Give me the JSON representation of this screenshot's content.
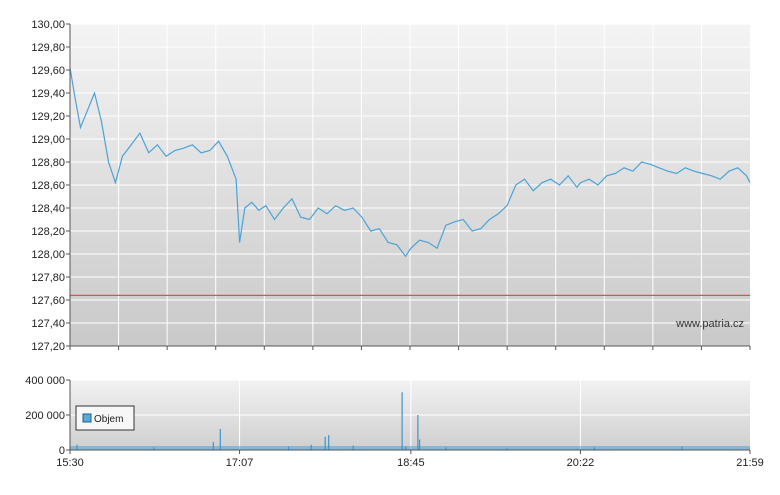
{
  "chart_data": [
    {
      "type": "line",
      "title": "",
      "xlabel": "",
      "ylabel": "",
      "ylim": [
        127.2,
        130.0
      ],
      "y_ticks": [
        "127,20",
        "127,40",
        "127,60",
        "127,80",
        "128,00",
        "128,20",
        "128,40",
        "128,60",
        "128,80",
        "129,00",
        "129,20",
        "129,40",
        "129,60",
        "129,80",
        "130,00"
      ],
      "y_tick_values": [
        127.2,
        127.4,
        127.6,
        127.8,
        128.0,
        128.2,
        128.4,
        128.6,
        128.8,
        129.0,
        129.2,
        129.4,
        129.6,
        129.8,
        130.0
      ],
      "x_range": [
        "15:30",
        "21:59"
      ],
      "reference_line": 127.64,
      "watermark": "www.patria.cz",
      "grid": true,
      "series": [
        {
          "x": [
            "15:30",
            "15:33",
            "15:36",
            "15:40",
            "15:44",
            "15:48",
            "15:52",
            "15:56",
            "16:00",
            "16:05",
            "16:10",
            "16:15",
            "16:20",
            "16:25",
            "16:30",
            "16:35",
            "16:40",
            "16:45",
            "16:50",
            "16:55",
            "17:00",
            "17:05",
            "17:07",
            "17:10",
            "17:14",
            "17:18",
            "17:22",
            "17:27",
            "17:32",
            "17:37",
            "17:42",
            "17:47",
            "17:52",
            "17:57",
            "18:02",
            "18:07",
            "18:12",
            "18:17",
            "18:22",
            "18:27",
            "18:32",
            "18:37",
            "18:42",
            "18:45",
            "18:50",
            "18:55",
            "19:00",
            "19:05",
            "19:10",
            "19:15",
            "19:20",
            "19:25",
            "19:30",
            "19:35",
            "19:40",
            "19:45",
            "19:50",
            "19:55",
            "20:00",
            "20:05",
            "20:10",
            "20:15",
            "20:20",
            "20:22",
            "20:27",
            "20:32",
            "20:37",
            "20:42",
            "20:47",
            "20:52",
            "20:57",
            "21:02",
            "21:07",
            "21:12",
            "21:17",
            "21:22",
            "21:27",
            "21:32",
            "21:37",
            "21:42",
            "21:47",
            "21:52",
            "21:57",
            "21:59"
          ],
          "values": [
            129.62,
            129.35,
            129.1,
            129.25,
            129.4,
            129.15,
            128.8,
            128.62,
            128.85,
            128.95,
            129.05,
            128.88,
            128.95,
            128.85,
            128.9,
            128.92,
            128.95,
            128.88,
            128.9,
            128.98,
            128.85,
            128.65,
            128.1,
            128.4,
            128.45,
            128.38,
            128.42,
            128.3,
            128.4,
            128.48,
            128.32,
            128.3,
            128.4,
            128.35,
            128.42,
            128.38,
            128.4,
            128.32,
            128.2,
            128.22,
            128.1,
            128.08,
            127.98,
            128.05,
            128.12,
            128.1,
            128.05,
            128.25,
            128.28,
            128.3,
            128.2,
            128.22,
            128.3,
            128.35,
            128.42,
            128.6,
            128.65,
            128.55,
            128.62,
            128.65,
            128.6,
            128.68,
            128.58,
            128.62,
            128.65,
            128.6,
            128.68,
            128.7,
            128.75,
            128.72,
            128.8,
            128.78,
            128.75,
            128.72,
            128.7,
            128.75,
            128.72,
            128.7,
            128.68,
            128.65,
            128.72,
            128.75,
            128.68,
            128.62
          ]
        }
      ]
    },
    {
      "type": "bar",
      "title": "",
      "xlabel": "",
      "ylabel": "",
      "ylim": [
        0,
        400000
      ],
      "y_ticks": [
        "0",
        "200 000",
        "400 000"
      ],
      "y_tick_values": [
        0,
        200000,
        400000
      ],
      "x_ticks": [
        "15:30",
        "17:07",
        "18:45",
        "20:22",
        "21:59"
      ],
      "legend": "Objem",
      "legend_position": "left",
      "grid": true,
      "series": [
        {
          "name": "Objem",
          "x": [
            "15:34",
            "16:18",
            "16:52",
            "16:56",
            "17:35",
            "17:48",
            "17:56",
            "17:58",
            "18:12",
            "18:40",
            "18:42",
            "18:49",
            "18:50",
            "19:05",
            "19:40",
            "20:30",
            "21:20"
          ],
          "values": [
            30000,
            15000,
            45000,
            120000,
            20000,
            30000,
            75000,
            85000,
            25000,
            330000,
            20000,
            200000,
            60000,
            15000,
            10000,
            15000,
            20000
          ]
        }
      ]
    }
  ]
}
